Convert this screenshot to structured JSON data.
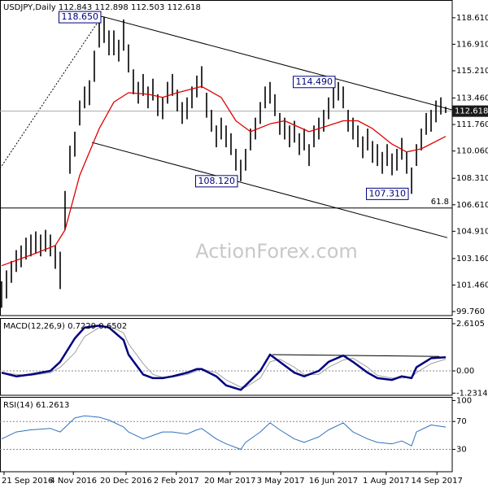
{
  "chart_data": [
    {
      "type": "ohlc",
      "title": "USDJPY,Daily  112.843 112.898 112.503 112.618",
      "watermark": "ActionForex.com",
      "color": "#000000",
      "high": [
        101.7,
        102.4,
        103.0,
        103.7,
        104.0,
        104.5,
        104.7,
        104.9,
        104.7,
        105.0,
        104.7,
        104.0,
        103.6,
        107.5,
        110.4,
        111.3,
        113.3,
        114.2,
        114.6,
        116.5,
        118.3,
        118.65,
        117.8,
        117.8,
        117.2,
        118.5,
        116.9,
        115.3,
        114.5,
        115.0,
        114.2,
        114.7,
        113.7,
        113.5,
        114.5,
        115.0,
        114.0,
        113.2,
        113.5,
        114.2,
        114.9,
        115.5,
        113.8,
        112.7,
        111.7,
        112.2,
        111.7,
        111.2,
        110.2,
        109.5,
        110.2,
        111.5,
        112.2,
        113.2,
        114.2,
        114.49,
        113.7,
        112.5,
        112.2,
        111.7,
        112.0,
        111.2,
        111.5,
        110.5,
        111.7,
        112.2,
        112.7,
        113.5,
        114.2,
        114.49,
        114.2,
        112.7,
        112.2,
        111.7,
        111.0,
        111.5,
        110.7,
        110.5,
        110.0,
        110.5,
        109.9,
        110.2,
        110.9,
        110.0,
        109.0,
        110.5,
        111.5,
        112.5,
        112.7,
        113.3,
        113.5,
        112.9
      ],
      "low": [
        100.0,
        100.6,
        101.6,
        102.3,
        102.6,
        103.1,
        103.3,
        103.5,
        103.3,
        103.6,
        103.3,
        102.5,
        101.2,
        105.0,
        108.6,
        109.7,
        111.7,
        112.8,
        113.0,
        114.5,
        116.7,
        117.0,
        116.2,
        116.2,
        115.8,
        116.5,
        115.1,
        113.7,
        113.1,
        113.6,
        112.8,
        113.3,
        112.3,
        112.1,
        113.1,
        113.6,
        112.6,
        111.8,
        112.1,
        112.8,
        113.5,
        114.1,
        112.2,
        111.3,
        110.3,
        110.8,
        110.3,
        109.8,
        108.8,
        108.12,
        108.8,
        110.1,
        110.8,
        111.8,
        112.8,
        113.1,
        112.3,
        111.1,
        110.8,
        110.3,
        110.6,
        109.8,
        110.1,
        109.1,
        110.3,
        110.8,
        111.3,
        112.1,
        112.8,
        113.3,
        112.8,
        111.3,
        110.8,
        110.3,
        109.6,
        110.1,
        109.3,
        109.1,
        108.6,
        109.1,
        108.5,
        108.8,
        109.5,
        108.6,
        107.31,
        109.1,
        110.1,
        111.1,
        111.3,
        111.9,
        112.4,
        112.5
      ],
      "ma": {
        "color": "#e00000",
        "x": [
          0,
          7,
          11,
          13,
          16,
          20,
          23,
          26,
          30,
          33,
          36,
          41,
          45,
          48,
          51,
          55,
          58,
          63,
          66,
          70,
          73,
          76,
          80,
          83,
          86,
          91
        ],
        "values": [
          102.7,
          103.5,
          104.0,
          105.0,
          108.5,
          111.5,
          113.2,
          113.8,
          113.7,
          113.5,
          113.8,
          114.2,
          113.5,
          112.0,
          111.3,
          111.8,
          112.0,
          111.3,
          111.6,
          112.0,
          112.0,
          111.5,
          110.5,
          110.0,
          110.2,
          111.0
        ]
      },
      "last": {
        "value": 112.618,
        "label": "112.618"
      },
      "annotations": [
        {
          "x": 21,
          "value": 118.65,
          "label": "118.650"
        },
        {
          "x": 69,
          "value": 114.49,
          "label": "114.490"
        },
        {
          "x": 49,
          "value": 108.12,
          "label": "108.120"
        },
        {
          "x": 84,
          "value": 107.31,
          "label": "107.310"
        }
      ],
      "trendlines": [
        {
          "x": [
            20.5,
            92.33
          ],
          "y": [
            118.7,
            112.7
          ],
          "style": "solid"
        },
        {
          "x": [
            18.5,
            91.33
          ],
          "y": [
            110.61,
            104.5
          ],
          "style": "solid"
        },
        {
          "x": [
            -0.33,
            20.5
          ],
          "y": [
            108.94,
            118.7
          ],
          "style": "dotted"
        }
      ],
      "levels": [
        {
          "value": 106.4,
          "label": "61.8"
        }
      ],
      "xlim": [
        -0.33,
        92.33
      ],
      "ylim": [
        99.5,
        119.75
      ],
      "yticks": [
        {
          "value": 118.61,
          "label": "118.610"
        },
        {
          "value": 116.91,
          "label": "116.910"
        },
        {
          "value": 115.21,
          "label": "115.210"
        },
        {
          "value": 113.46,
          "label": "113.460"
        },
        {
          "value": 111.76,
          "label": "111.760"
        },
        {
          "value": 110.06,
          "label": "110.060"
        },
        {
          "value": 108.31,
          "label": "108.310"
        },
        {
          "value": 106.61,
          "label": "106.610"
        },
        {
          "value": 104.91,
          "label": "104.910"
        },
        {
          "value": 103.16,
          "label": "103.160"
        },
        {
          "value": 101.46,
          "label": "101.460"
        },
        {
          "value": 99.76,
          "label": "99.760"
        }
      ]
    },
    {
      "type": "macd",
      "title": "MACD(12,26,9) 0.7229 0.6502",
      "x": [
        0,
        3,
        6,
        10,
        12,
        15,
        17,
        20,
        22,
        25,
        26,
        29,
        31,
        33,
        35,
        38,
        40,
        41,
        44,
        46,
        49,
        50,
        53,
        55,
        57,
        60,
        62,
        65,
        67,
        70,
        72,
        75,
        77,
        80,
        82,
        84,
        85,
        88,
        91
      ],
      "series": [
        {
          "color": "#000080",
          "values": [
            -0.1,
            -0.3,
            -0.2,
            0.0,
            0.5,
            1.8,
            2.4,
            2.5,
            2.4,
            1.7,
            0.9,
            -0.2,
            -0.4,
            -0.4,
            -0.3,
            -0.1,
            0.1,
            0.1,
            -0.3,
            -0.8,
            -1.05,
            -0.8,
            0.0,
            0.9,
            0.5,
            -0.1,
            -0.3,
            0.0,
            0.5,
            0.85,
            0.5,
            -0.1,
            -0.4,
            -0.5,
            -0.3,
            -0.4,
            0.2,
            0.7,
            0.75
          ]
        },
        {
          "color": "#a0a0a0",
          "values": [
            -0.1,
            -0.2,
            -0.25,
            -0.1,
            0.2,
            1.0,
            1.9,
            2.4,
            2.5,
            2.1,
            1.5,
            0.4,
            -0.2,
            -0.35,
            -0.35,
            -0.2,
            0.0,
            0.1,
            -0.1,
            -0.5,
            -0.9,
            -0.9,
            -0.4,
            0.5,
            0.65,
            0.2,
            -0.2,
            -0.2,
            0.2,
            0.6,
            0.7,
            0.2,
            -0.25,
            -0.4,
            -0.4,
            -0.35,
            -0.1,
            0.4,
            0.65
          ]
        }
      ],
      "trendlines": [
        {
          "x": [
            55.5,
            89.7
          ],
          "y": [
            0.9,
            0.8
          ],
          "style": "solid"
        }
      ],
      "levels": [
        0
      ],
      "xlim": [
        -0.33,
        92.33
      ],
      "ylim": [
        -1.35,
        2.88
      ],
      "yticks": [
        2.6105,
        {
          "value": 0,
          "label": "0.00"
        },
        -1.2314
      ]
    },
    {
      "type": "line",
      "title": "RSI(14) 61.2613",
      "color": "#3070c0",
      "x": [
        0,
        3,
        6,
        10,
        12,
        15,
        17,
        20,
        22,
        25,
        26,
        29,
        31,
        33,
        35,
        38,
        40,
        41,
        44,
        46,
        49,
        50,
        53,
        55,
        57,
        60,
        62,
        65,
        67,
        70,
        72,
        75,
        77,
        80,
        82,
        84,
        85,
        88,
        91
      ],
      "values": [
        45,
        55,
        58,
        60,
        55,
        75,
        78,
        76,
        72,
        62,
        55,
        45,
        50,
        55,
        55,
        52,
        58,
        60,
        45,
        38,
        30,
        40,
        55,
        68,
        58,
        45,
        40,
        48,
        58,
        68,
        55,
        45,
        40,
        38,
        42,
        35,
        55,
        65,
        62
      ],
      "levels": [
        70,
        30
      ],
      "xlim": [
        -0.33,
        92.33
      ],
      "ylim": [
        -2,
        104
      ],
      "yticks": [
        100,
        70,
        30
      ],
      "xticks": [
        {
          "value": 0.5,
          "label": "21 Sep 2016"
        },
        {
          "value": 14.7,
          "label": "4 Nov 2016"
        },
        {
          "value": 25.5,
          "label": "20 Dec 2016"
        },
        {
          "value": 35.8,
          "label": "2 Feb 2017"
        },
        {
          "value": 46.8,
          "label": "20 Mar 2017"
        },
        {
          "value": 57.2,
          "label": "3 May 2017"
        },
        {
          "value": 68,
          "label": "16 Jun 2017"
        },
        {
          "value": 78.8,
          "label": "1 Aug 2017"
        },
        {
          "value": 89.2,
          "label": "14 Sep 2017"
        }
      ]
    }
  ]
}
